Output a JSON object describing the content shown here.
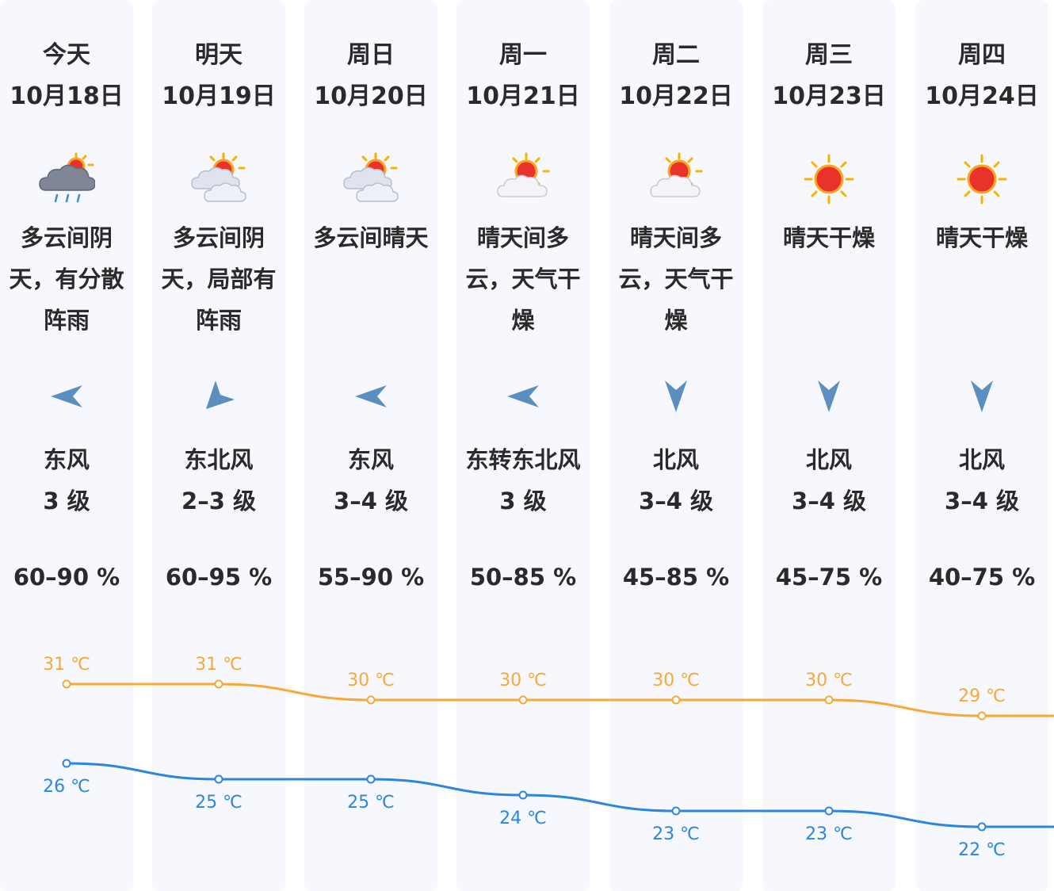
{
  "colors": {
    "high_line": "#f7a935",
    "low_line": "#2a86e2",
    "wind_arrow": "#5b8fc0",
    "column_bg": "#f6f8fd"
  },
  "days": [
    {
      "day": "今天",
      "date": "10月18日",
      "icon": "cloudy-shower-icon",
      "desc": "多云间阴天，有分散阵雨",
      "wind_arrow": "west",
      "wind_dir": "东风",
      "wind_level": "3 级",
      "humidity": "60–90 %",
      "high": "31 ℃",
      "low": "26 ℃"
    },
    {
      "day": "明天",
      "date": "10月19日",
      "icon": "partly-cloudy-icon",
      "desc": "多云间阴天，局部有阵雨",
      "wind_arrow": "southwest",
      "wind_dir": "东北风",
      "wind_level": "2–3 级",
      "humidity": "60–95 %",
      "high": "31 ℃",
      "low": "25 ℃"
    },
    {
      "day": "周日",
      "date": "10月20日",
      "icon": "partly-cloudy-icon",
      "desc": "多云间晴天",
      "wind_arrow": "west",
      "wind_dir": "东风",
      "wind_level": "3–4 级",
      "humidity": "55–90 %",
      "high": "30 ℃",
      "low": "25 ℃"
    },
    {
      "day": "周一",
      "date": "10月21日",
      "icon": "sunny-cloud-icon",
      "desc": "晴天间多云，天气干燥",
      "wind_arrow": "west",
      "wind_dir": "东转东北风",
      "wind_level": "3 级",
      "humidity": "50–85 %",
      "high": "30 ℃",
      "low": "24 ℃"
    },
    {
      "day": "周二",
      "date": "10月22日",
      "icon": "sunny-cloud-icon",
      "desc": "晴天间多云，天气干燥",
      "wind_arrow": "south",
      "wind_dir": "北风",
      "wind_level": "3–4 级",
      "humidity": "45–85 %",
      "high": "30 ℃",
      "low": "23 ℃"
    },
    {
      "day": "周三",
      "date": "10月23日",
      "icon": "sun-icon",
      "desc": "晴天干燥",
      "wind_arrow": "south",
      "wind_dir": "北风",
      "wind_level": "3–4 级",
      "humidity": "45–75 %",
      "high": "30 ℃",
      "low": "23 ℃"
    },
    {
      "day": "周四",
      "date": "10月24日",
      "icon": "sun-icon",
      "desc": "晴天干燥",
      "wind_arrow": "south",
      "wind_dir": "北风",
      "wind_level": "3–4 级",
      "humidity": "40–75 %",
      "high": "29 ℃",
      "low": "22 ℃"
    }
  ],
  "chart_data": {
    "type": "line",
    "categories": [
      "10月18日",
      "10月19日",
      "10月20日",
      "10月21日",
      "10月22日",
      "10月23日",
      "10月24日"
    ],
    "series": [
      {
        "values": [
          31,
          31,
          30,
          30,
          30,
          30,
          29
        ]
      },
      {
        "values": [
          26,
          25,
          25,
          24,
          23,
          23,
          22
        ]
      }
    ],
    "grid": false
  }
}
